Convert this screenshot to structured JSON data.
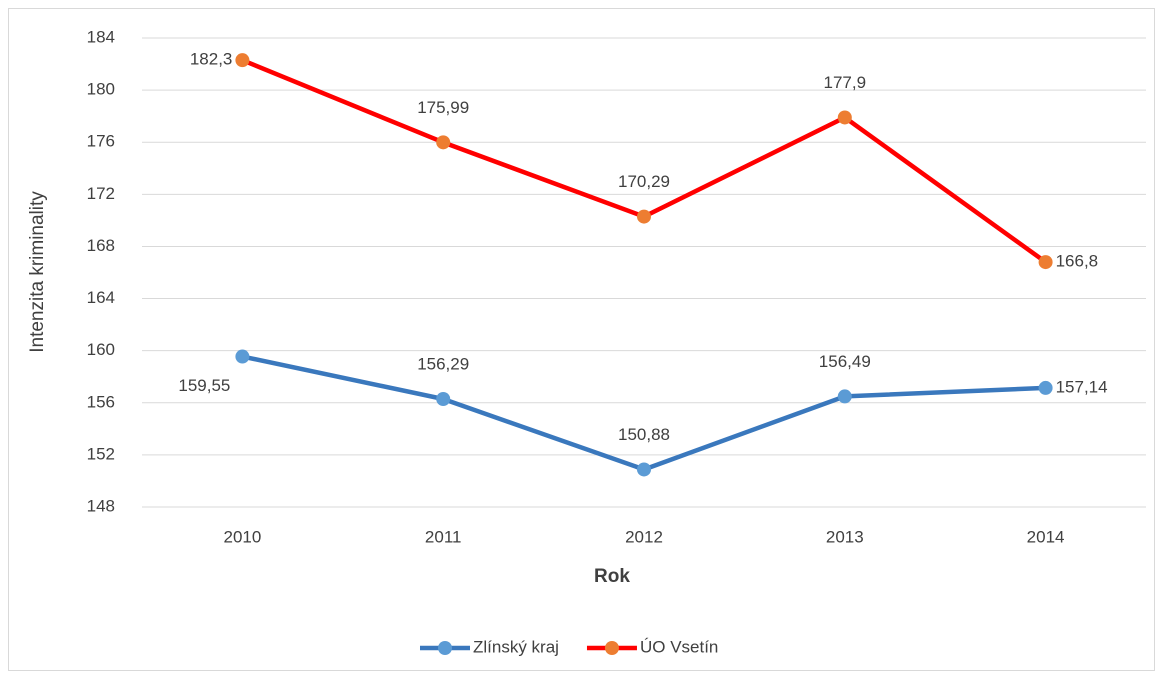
{
  "chart_data": {
    "type": "line",
    "x_label": "Rok",
    "y_label": "Intenzita kriminality",
    "categories": [
      "2010",
      "2011",
      "2012",
      "2013",
      "2014"
    ],
    "series": [
      {
        "name": "Zlínský kraj",
        "color": "#3a78bd",
        "marker_color": "#5b9bd5",
        "values": [
          159.55,
          156.29,
          150.88,
          156.49,
          157.14
        ],
        "value_labels": [
          "159,55",
          "156,29",
          "150,88",
          "156,49",
          "157,14"
        ]
      },
      {
        "name": "ÚO Vsetín",
        "color": "#ff0000",
        "marker_color": "#ed7d31",
        "values": [
          182.3,
          175.99,
          170.29,
          177.9,
          166.8
        ],
        "value_labels": [
          "182,3",
          "175,99",
          "170,29",
          "177,9",
          "166,8"
        ]
      }
    ],
    "ylim": [
      148,
      184
    ],
    "yticks": [
      148,
      152,
      156,
      160,
      164,
      168,
      172,
      176,
      180,
      184
    ],
    "grid": true,
    "legend": "bottom"
  }
}
